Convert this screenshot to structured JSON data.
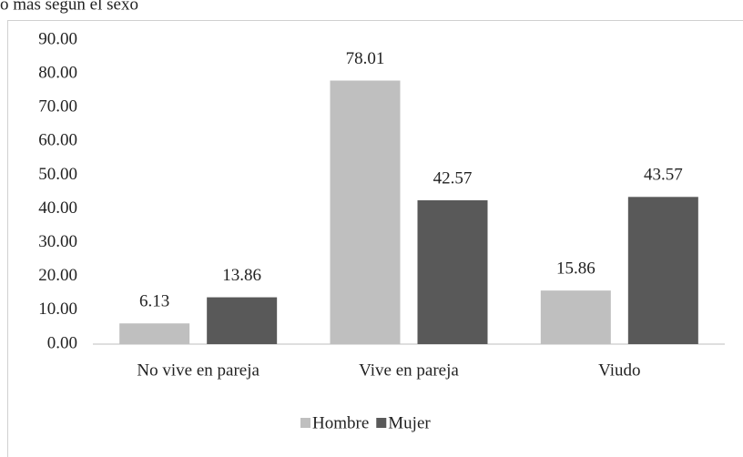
{
  "chart_data": {
    "type": "bar",
    "title": "o más según el sexo",
    "categories": [
      "No vive en pareja",
      "Vive en pareja",
      "Viudo"
    ],
    "series": [
      {
        "name": "Hombre",
        "color": "#bfbfbf",
        "values": [
          6.13,
          78.01,
          15.86
        ]
      },
      {
        "name": "Mujer",
        "color": "#595959",
        "values": [
          13.86,
          42.57,
          43.57
        ]
      }
    ],
    "ylim": [
      0,
      90
    ],
    "yticks": [
      {
        "value": 0,
        "label": "0.00"
      },
      {
        "value": 10,
        "label": "10.00"
      },
      {
        "value": 20,
        "label": "20.00"
      },
      {
        "value": 30,
        "label": "30.00"
      },
      {
        "value": 40,
        "label": "40.00"
      },
      {
        "value": 50,
        "label": "50.00"
      },
      {
        "value": 60,
        "label": "60.00"
      },
      {
        "value": 70,
        "label": "70.00"
      },
      {
        "value": 80,
        "label": "80.00"
      },
      {
        "value": 90,
        "label": "90.00"
      }
    ],
    "grid": false,
    "legend": "bottom"
  }
}
